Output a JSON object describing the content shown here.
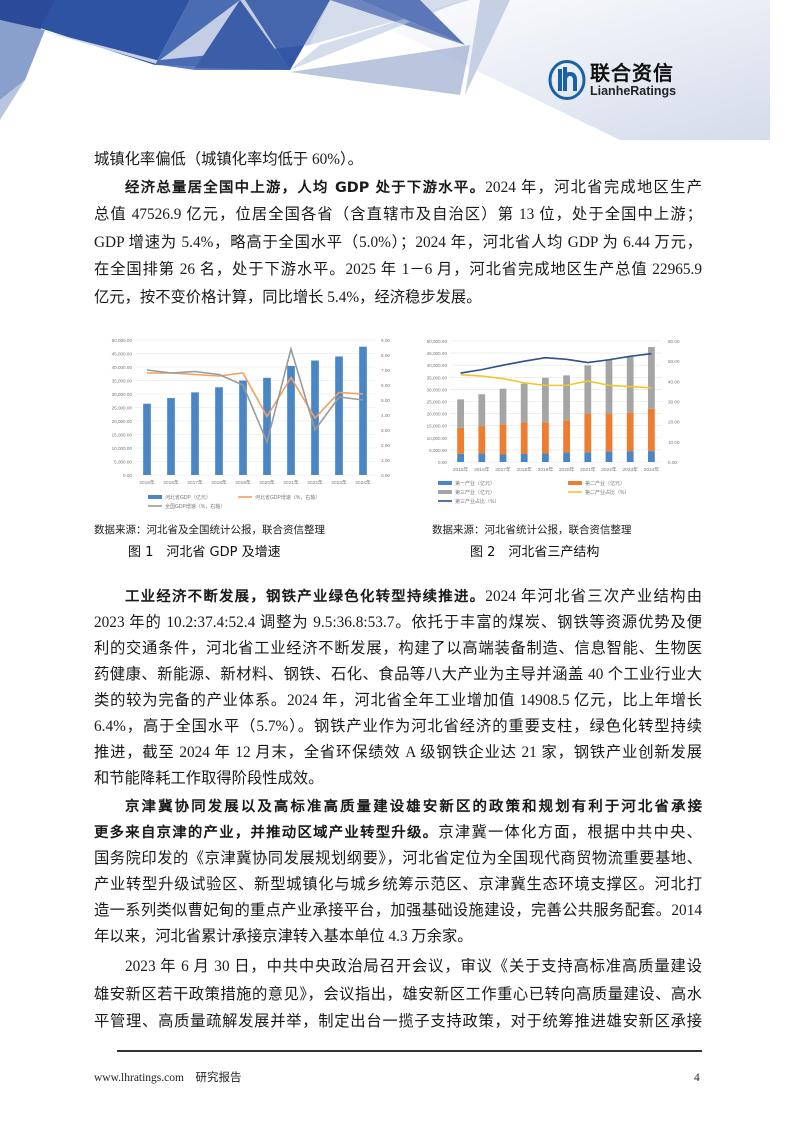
{
  "header": {
    "logo_cn": "联合资信",
    "logo_en": "LianheRatings",
    "brand_color": "#1b5fa8"
  },
  "paragraphs": {
    "p0": [
      "城镇化率偏低（城镇化率均低于 60%）。"
    ],
    "p1": {
      "bold": "经济总量居全国中上游，人均 GDP 处于下游水平。",
      "lines": [
        "2024 年，河北省完成地区生产",
        "总值 47526.9 亿元，位居全国各省（含直辖市及自治区）第 13 位，处于全国中上游；",
        "GDP 增速为 5.4%，略高于全国水平（5.0%）；2024 年，河北省人均 GDP 为 6.44 万元，",
        "在全国排第 26 名，处于下游水平。2025 年 1－6 月，河北省完成地区生产总值 22965.9",
        "亿元，按不变价格计算，同比增长 5.4%，经济稳步发展。"
      ]
    },
    "p2": {
      "bold": "工业经济不断发展，钢铁产业绿色化转型持续推进。",
      "lines": [
        "2024 年河北省三次产业结构由",
        "2023 年的 10.2:37.4:52.4 调整为 9.5:36.8:53.7。依托于丰富的煤炭、钢铁等资源优势及便",
        "利的交通条件，河北省工业经济不断发展，构建了以高端装备制造、信息智能、生物医",
        "药健康、新能源、新材料、钢铁、石化、食品等八大产业为主导并涵盖 40 个工业行业大",
        "类的较为完备的产业体系。2024 年，河北省全年工业增加值 14908.5 亿元，比上年增长",
        "6.4%，高于全国水平（5.7%）。钢铁产业作为河北省经济的重要支柱，绿色化转型持续",
        "推进，截至 2024 年 12 月末，全省环保绩效 A 级钢铁企业达 21 家，钢铁产业创新发展",
        "和节能降耗工作取得阶段性成效。"
      ]
    },
    "p3": {
      "bold_lines": [
        "京津冀协同发展以及高标准高质量建设雄安新区的政策和规划有利于河北省承接",
        "更多来自京津的产业，并推动区域产业转型升级。"
      ],
      "lines": [
        "京津冀一体化方面，根据中共中央、",
        "国务院印发的《京津冀协同发展规划纲要》，河北省定位为全国现代商贸物流重要基地、",
        "产业转型升级试验区、新型城镇化与城乡统筹示范区、京津冀生态环境支撑区。河北打",
        "造一系列类似曹妃甸的重点产业承接平台，加强基础设施建设，完善公共服务配套。2014",
        "年以来，河北省累计承接京津转入基本单位 4.3 万余家。"
      ]
    },
    "p4": [
      "2023 年 6 月 30 日，中共中央政治局召开会议，审议《关于支持高标准高质量建设",
      "雄安新区若干政策措施的意见》，会议指出，雄安新区工作重心已转向高质量建设、高水",
      "平管理、高质量疏解发展并举，制定出台一揽子支持政策，对于统筹推进雄安新区承接"
    ]
  },
  "figures": [
    {
      "source": "数据来源：河北省及全国统计公报，联合资信整理",
      "caption": "图 1　河北省 GDP 及增速"
    },
    {
      "source": "数据来源：河北省统计公报，联合资信整理",
      "caption": "图 2　河北省三产结构"
    }
  ],
  "chart_data": [
    {
      "type": "bar+line",
      "categories": [
        "2015年",
        "2016年",
        "2017年",
        "2018年",
        "2019年",
        "2020年",
        "2021年",
        "2022年",
        "2023年",
        "2024年"
      ],
      "ylim": [
        0,
        50000
      ],
      "y_ticks": [
        "0.00",
        "5,000.00",
        "10,000.00",
        "15,000.00",
        "20,000.00",
        "25,000.00",
        "30,000.00",
        "35,000.00",
        "40,000.00",
        "45,000.00",
        "50,000.00"
      ],
      "y2lim": [
        0,
        9
      ],
      "y2_ticks": [
        "0.00",
        "1.00",
        "2.00",
        "3.00",
        "4.00",
        "5.00",
        "6.00",
        "7.00",
        "8.00",
        "9.00"
      ],
      "grid": true,
      "legend": "bottom",
      "bars": [
        {
          "name": "河北省GDP（亿元）",
          "color": "#4a86c6",
          "values": [
            26400,
            28500,
            30600,
            32500,
            35000,
            36000,
            40400,
            42400,
            43900,
            47527
          ]
        }
      ],
      "lines": [
        {
          "name": "河北省GDP增速（%，右轴）",
          "color": "#f0a060",
          "values": [
            6.8,
            6.8,
            6.7,
            6.6,
            6.8,
            3.9,
            6.5,
            3.8,
            5.5,
            5.4
          ]
        },
        {
          "name": "全国GDP增速（%，右轴）",
          "color": "#9a9a9a",
          "values": [
            7.0,
            6.8,
            6.9,
            6.7,
            6.0,
            2.2,
            8.4,
            3.0,
            5.2,
            5.0
          ]
        }
      ]
    },
    {
      "type": "stacked-bar+line",
      "categories": [
        "2015年",
        "2016年",
        "2017年",
        "2018年",
        "2019年",
        "2020年",
        "2021年",
        "2022年",
        "2023年",
        "2024年"
      ],
      "ylim": [
        0,
        50000
      ],
      "y_ticks": [
        "0.00",
        "5,000.00",
        "10,000.00",
        "15,000.00",
        "20,000.00",
        "25,000.00",
        "30,000.00",
        "35,000.00",
        "40,000.00",
        "45,000.00",
        "50,000.00"
      ],
      "y2lim": [
        0,
        60
      ],
      "y2_ticks": [
        "0.00",
        "10.00",
        "20.00",
        "30.00",
        "40.00",
        "50.00",
        "60.00"
      ],
      "grid": true,
      "legend": "bottom",
      "bars": [
        {
          "name": "第一产业（亿元）",
          "color": "#4a86c6",
          "values": [
            3400,
            3500,
            3100,
            3300,
            3500,
            3900,
            4000,
            4400,
            4500,
            4500
          ]
        },
        {
          "name": "第二产业（亿元）",
          "color": "#ed7d31",
          "values": [
            10800,
            11400,
            12500,
            13000,
            12900,
            13300,
            16000,
            15600,
            15900,
            17500
          ]
        },
        {
          "name": "第三产业（亿元）",
          "color": "#a5a5a5",
          "values": [
            11700,
            13100,
            14700,
            16100,
            18400,
            18600,
            19900,
            22400,
            23000,
            25500
          ]
        }
      ],
      "lines": [
        {
          "name": "第二产业占比（%）",
          "color": "#f2c62c",
          "values": [
            43.3,
            42.6,
            41.3,
            39.3,
            38.0,
            38.0,
            40.2,
            38.0,
            37.4,
            36.8
          ]
        },
        {
          "name": "第三产业占比（%）",
          "color": "#2f4f8f",
          "values": [
            44.1,
            45.8,
            48.0,
            50.0,
            51.7,
            50.9,
            49.3,
            50.7,
            52.4,
            53.7
          ]
        }
      ]
    }
  ],
  "footer": {
    "site": "www.lhratings.com",
    "label": "研究报告",
    "page": "4"
  }
}
